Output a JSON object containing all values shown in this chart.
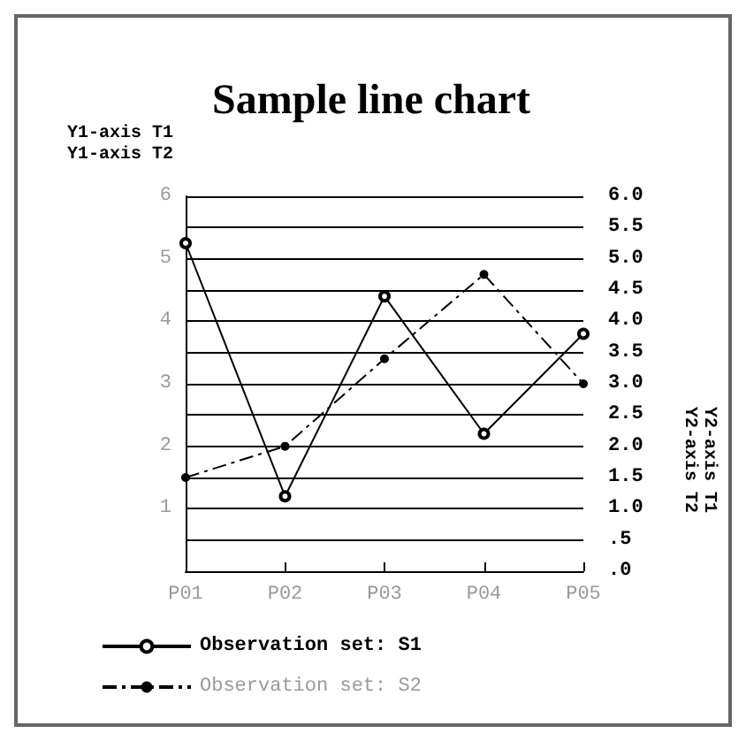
{
  "chart_data": {
    "type": "line",
    "title": "Sample line chart",
    "ylabel": "Y1-axis T1\nY1-axis T2",
    "y2label": "Y2-axis T1\nY2-axis T2",
    "categories": [
      "P01",
      "P02",
      "P03",
      "P04",
      "P05"
    ],
    "series": [
      {
        "name": "Observation set: S1",
        "color": "#000000",
        "values": [
          5.25,
          1.2,
          4.4,
          2.2,
          3.8
        ],
        "line_style": "solid"
      },
      {
        "name": "Observation set: S2",
        "color": "#000000",
        "values": [
          1.5,
          2.0,
          3.4,
          4.75,
          3.0
        ],
        "line_style": "dashed"
      }
    ],
    "ylim": [
      0,
      6
    ],
    "yticks": [
      1,
      2,
      3,
      4,
      5,
      6
    ],
    "y2lim": [
      0,
      6
    ],
    "y2ticks": [
      {
        "value": 0,
        "label": ".0"
      },
      {
        "value": 0.5,
        "label": ".5"
      },
      {
        "value": 1,
        "label": "1.0"
      },
      {
        "value": 1.5,
        "label": "1.5"
      },
      {
        "value": 2,
        "label": "2.0"
      },
      {
        "value": 2.5,
        "label": "2.5"
      },
      {
        "value": 3,
        "label": "3.0"
      },
      {
        "value": 3.5,
        "label": "3.5"
      },
      {
        "value": 4,
        "label": "4.0"
      },
      {
        "value": 4.5,
        "label": "4.5"
      },
      {
        "value": 5,
        "label": "5.0"
      },
      {
        "value": 5.5,
        "label": "5.5"
      },
      {
        "value": 6,
        "label": "6.0"
      }
    ],
    "grid": "y",
    "legend": "bottom left",
    "marker": "circle"
  }
}
